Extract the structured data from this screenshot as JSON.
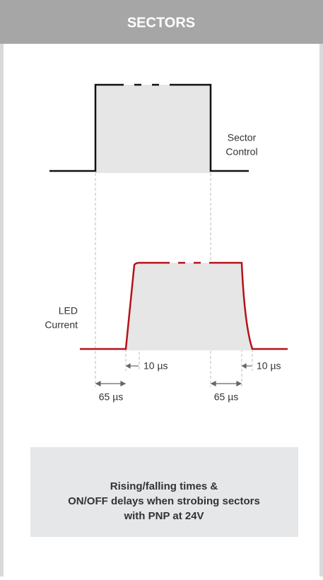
{
  "header": {
    "title": "SECTORS"
  },
  "diagram": {
    "sector_label": [
      "Sector",
      "Control"
    ],
    "led_label": [
      "LED",
      "Current"
    ],
    "rise_delay": "10 µs",
    "fall_delay": "10 µs",
    "on_delay": "65 µs",
    "off_delay": "65 µs"
  },
  "caption": {
    "lines": [
      "Rising/falling times &",
      "ON/OFF delays when strobing sectors",
      "with PNP at 24V"
    ]
  }
}
